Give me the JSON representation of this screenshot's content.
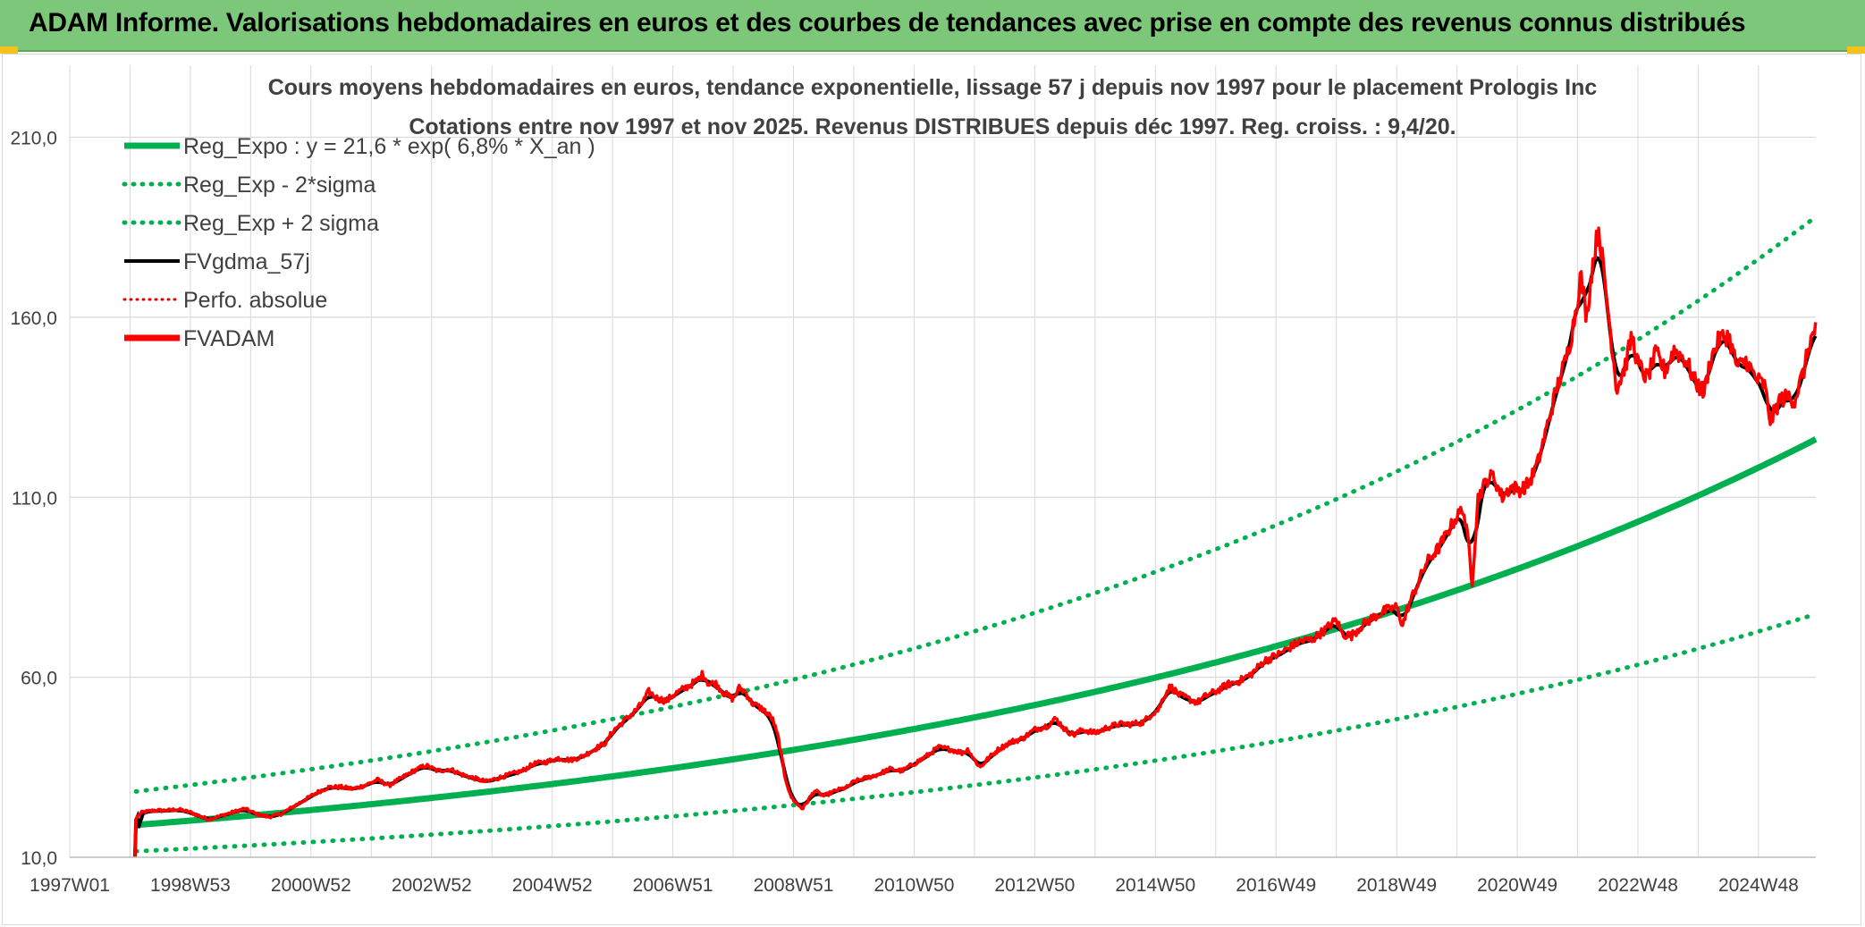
{
  "banner": {
    "title": "ADAM Informe. Valorisations hebdomadaires en euros et des courbes de tendances avec prise en compte des revenus connus distribués"
  },
  "colors": {
    "banner_bg": "#7dc77a",
    "regression": "#00b050",
    "sigma": "#00b050",
    "fvgdma": "#000000",
    "perfo": "#e00000",
    "fvadam": "#ff0000",
    "grid": "#d9d9d9",
    "title_text": "#404040"
  },
  "chart_data": {
    "type": "line",
    "title": "Cours moyens hebdomadaires en euros, tendance exponentielle, lissage 57 j depuis nov 1997 pour le placement Prologis Inc",
    "subtitle": "Cotations entre nov 1997 et nov 2025. Revenus DISTRIBUES depuis déc 1997. Reg. croiss. : 9,4/20.",
    "xlabel": "",
    "ylabel": "",
    "x_range": [
      1997.0,
      2025.95
    ],
    "ylim": [
      10,
      230
    ],
    "y_ticks": [
      {
        "value": 10,
        "label": "10,0"
      },
      {
        "value": 60,
        "label": "60,0"
      },
      {
        "value": 110,
        "label": "110,0"
      },
      {
        "value": 160,
        "label": "160,0"
      },
      {
        "value": 210,
        "label": "210,0"
      }
    ],
    "x_ticks": [
      {
        "value": 1997.0,
        "label": "1997W01"
      },
      {
        "value": 1999.0,
        "label": "1998W53"
      },
      {
        "value": 2001.0,
        "label": "2000W52"
      },
      {
        "value": 2003.0,
        "label": "2002W52"
      },
      {
        "value": 2005.0,
        "label": "2004W52"
      },
      {
        "value": 2007.0,
        "label": "2006W51"
      },
      {
        "value": 2009.0,
        "label": "2008W51"
      },
      {
        "value": 2011.0,
        "label": "2010W50"
      },
      {
        "value": 2013.0,
        "label": "2012W50"
      },
      {
        "value": 2015.0,
        "label": "2014W50"
      },
      {
        "value": 2017.0,
        "label": "2016W49"
      },
      {
        "value": 2019.0,
        "label": "2018W49"
      },
      {
        "value": 2021.0,
        "label": "2020W49"
      },
      {
        "value": 2023.0,
        "label": "2022W48"
      },
      {
        "value": 2025.0,
        "label": "2024W48"
      }
    ],
    "grid": true,
    "legend_position": "top-left",
    "legend": [
      {
        "key": "reg_expo",
        "label": "Reg_Expo : y = 21,6 * exp( 6,8% *  X_an )",
        "style": "solid-thick",
        "color": "#00b050"
      },
      {
        "key": "reg_minus",
        "label": "Reg_Exp - 2*sigma",
        "style": "dotted",
        "color": "#00b050"
      },
      {
        "key": "reg_plus",
        "label": "Reg_Exp + 2 sigma",
        "style": "dotted",
        "color": "#00b050"
      },
      {
        "key": "fvgdma",
        "label": "FVgdma_57j",
        "style": "solid",
        "color": "#000000"
      },
      {
        "key": "perfo",
        "label": "Perfo. absolue",
        "style": "dotted-thin",
        "color": "#e00000"
      },
      {
        "key": "fvadam",
        "label": "FVADAM",
        "style": "solid-thick",
        "color": "#ff0000"
      }
    ],
    "regression": {
      "start_x": 2000.0,
      "start_value": 21.6,
      "growth_rate": 0.068,
      "x_start": 1998.1,
      "x_end": 2025.95
    },
    "sigma_bands": {
      "minus_factor": 0.615,
      "plus_factor": 1.49
    },
    "fvadam_points": [
      [
        1998.08,
        10.0
      ],
      [
        1998.1,
        21.0
      ],
      [
        1998.2,
        22.5
      ],
      [
        1998.4,
        23.0
      ],
      [
        1998.6,
        23.0
      ],
      [
        1998.8,
        23.3
      ],
      [
        1999.0,
        22.5
      ],
      [
        1999.15,
        21.5
      ],
      [
        1999.3,
        20.5
      ],
      [
        1999.5,
        21.5
      ],
      [
        1999.7,
        22.5
      ],
      [
        1999.9,
        23.5
      ],
      [
        2000.1,
        22.0
      ],
      [
        2000.3,
        21.2
      ],
      [
        2000.5,
        22.0
      ],
      [
        2000.7,
        24.0
      ],
      [
        2000.9,
        26.0
      ],
      [
        2001.1,
        28.0
      ],
      [
        2001.3,
        29.5
      ],
      [
        2001.5,
        29.5
      ],
      [
        2001.7,
        29.0
      ],
      [
        2001.9,
        30.0
      ],
      [
        2002.1,
        31.5
      ],
      [
        2002.3,
        30.0
      ],
      [
        2002.5,
        32.0
      ],
      [
        2002.7,
        34.0
      ],
      [
        2002.9,
        35.5
      ],
      [
        2003.1,
        34.0
      ],
      [
        2003.3,
        34.5
      ],
      [
        2003.5,
        33.0
      ],
      [
        2003.7,
        32.0
      ],
      [
        2003.9,
        31.0
      ],
      [
        2004.1,
        32.0
      ],
      [
        2004.3,
        33.0
      ],
      [
        2004.5,
        34.0
      ],
      [
        2004.7,
        36.0
      ],
      [
        2004.9,
        36.5
      ],
      [
        2005.1,
        37.5
      ],
      [
        2005.3,
        37.0
      ],
      [
        2005.5,
        38.0
      ],
      [
        2005.7,
        40.0
      ],
      [
        2005.9,
        42.0
      ],
      [
        2006.0,
        45.0
      ],
      [
        2006.2,
        48.0
      ],
      [
        2006.4,
        51.0
      ],
      [
        2006.5,
        53.0
      ],
      [
        2006.6,
        56.0
      ],
      [
        2006.75,
        54.0
      ],
      [
        2006.9,
        53.5
      ],
      [
        2007.0,
        55.0
      ],
      [
        2007.2,
        57.0
      ],
      [
        2007.4,
        59.0
      ],
      [
        2007.5,
        61.0
      ],
      [
        2007.6,
        58.0
      ],
      [
        2007.7,
        58.5
      ],
      [
        2007.85,
        55.5
      ],
      [
        2008.0,
        54.0
      ],
      [
        2008.1,
        57.0
      ],
      [
        2008.2,
        56.0
      ],
      [
        2008.3,
        53.0
      ],
      [
        2008.5,
        51.0
      ],
      [
        2008.65,
        48.5
      ],
      [
        2008.75,
        43.0
      ],
      [
        2008.85,
        33.0
      ],
      [
        2008.95,
        27.0
      ],
      [
        2009.05,
        25.0
      ],
      [
        2009.15,
        23.5
      ],
      [
        2009.25,
        26.0
      ],
      [
        2009.35,
        28.5
      ],
      [
        2009.5,
        27.0
      ],
      [
        2009.7,
        28.5
      ],
      [
        2009.9,
        29.5
      ],
      [
        2010.0,
        31.0
      ],
      [
        2010.2,
        32.0
      ],
      [
        2010.4,
        33.0
      ],
      [
        2010.6,
        34.5
      ],
      [
        2010.8,
        34.0
      ],
      [
        2011.0,
        36.0
      ],
      [
        2011.2,
        38.0
      ],
      [
        2011.4,
        40.5
      ],
      [
        2011.6,
        40.0
      ],
      [
        2011.8,
        39.0
      ],
      [
        2011.9,
        40.0
      ],
      [
        2012.0,
        37.0
      ],
      [
        2012.1,
        35.0
      ],
      [
        2012.2,
        37.0
      ],
      [
        2012.4,
        40.0
      ],
      [
        2012.6,
        42.0
      ],
      [
        2012.8,
        43.0
      ],
      [
        2013.0,
        45.5
      ],
      [
        2013.2,
        46.5
      ],
      [
        2013.35,
        48.5
      ],
      [
        2013.5,
        45.5
      ],
      [
        2013.65,
        44.0
      ],
      [
        2013.8,
        45.5
      ],
      [
        2014.0,
        44.5
      ],
      [
        2014.2,
        46.0
      ],
      [
        2014.4,
        47.0
      ],
      [
        2014.6,
        47.0
      ],
      [
        2014.8,
        47.5
      ],
      [
        2014.95,
        50.0
      ],
      [
        2015.05,
        51.0
      ],
      [
        2015.15,
        55.0
      ],
      [
        2015.25,
        57.5
      ],
      [
        2015.4,
        55.0
      ],
      [
        2015.55,
        54.0
      ],
      [
        2015.7,
        53.0
      ],
      [
        2015.85,
        55.0
      ],
      [
        2016.0,
        56.0
      ],
      [
        2016.2,
        58.0
      ],
      [
        2016.4,
        59.0
      ],
      [
        2016.6,
        61.0
      ],
      [
        2016.8,
        64.5
      ],
      [
        2017.0,
        66.0
      ],
      [
        2017.2,
        68.0
      ],
      [
        2017.4,
        70.0
      ],
      [
        2017.6,
        70.5
      ],
      [
        2017.8,
        73.0
      ],
      [
        2018.0,
        76.0
      ],
      [
        2018.1,
        72.0
      ],
      [
        2018.25,
        71.5
      ],
      [
        2018.4,
        74.0
      ],
      [
        2018.6,
        76.5
      ],
      [
        2018.8,
        78.5
      ],
      [
        2019.0,
        79.5
      ],
      [
        2019.1,
        74.5
      ],
      [
        2019.2,
        80.0
      ],
      [
        2019.35,
        86.0
      ],
      [
        2019.5,
        92.0
      ],
      [
        2019.7,
        96.0
      ],
      [
        2019.9,
        102.0
      ],
      [
        2020.1,
        107.0
      ],
      [
        2020.2,
        96.0
      ],
      [
        2020.25,
        86.0
      ],
      [
        2020.35,
        110.0
      ],
      [
        2020.5,
        115.0
      ],
      [
        2020.6,
        116.0
      ],
      [
        2020.75,
        110.0
      ],
      [
        2020.9,
        113.0
      ],
      [
        2021.05,
        112.0
      ],
      [
        2021.2,
        114.0
      ],
      [
        2021.35,
        120.0
      ],
      [
        2021.5,
        130.0
      ],
      [
        2021.65,
        140.0
      ],
      [
        2021.8,
        148.0
      ],
      [
        2021.9,
        155.0
      ],
      [
        2022.0,
        165.0
      ],
      [
        2022.05,
        172.0
      ],
      [
        2022.15,
        160.0
      ],
      [
        2022.25,
        175.0
      ],
      [
        2022.35,
        185.0
      ],
      [
        2022.45,
        170.0
      ],
      [
        2022.55,
        155.0
      ],
      [
        2022.65,
        140.0
      ],
      [
        2022.8,
        147.0
      ],
      [
        2022.9,
        155.0
      ],
      [
        2023.0,
        147.0
      ],
      [
        2023.15,
        143.0
      ],
      [
        2023.3,
        150.0
      ],
      [
        2023.45,
        145.0
      ],
      [
        2023.6,
        151.0
      ],
      [
        2023.8,
        148.0
      ],
      [
        2023.95,
        142.0
      ],
      [
        2024.1,
        139.0
      ],
      [
        2024.2,
        148.0
      ],
      [
        2024.35,
        154.0
      ],
      [
        2024.5,
        155.0
      ],
      [
        2024.65,
        146.0
      ],
      [
        2024.8,
        148.0
      ],
      [
        2024.95,
        143.0
      ],
      [
        2025.1,
        141.0
      ],
      [
        2025.2,
        131.0
      ],
      [
        2025.35,
        137.0
      ],
      [
        2025.5,
        138.0
      ],
      [
        2025.6,
        137.0
      ],
      [
        2025.75,
        145.0
      ],
      [
        2025.85,
        153.0
      ],
      [
        2025.95,
        157.0
      ]
    ]
  }
}
